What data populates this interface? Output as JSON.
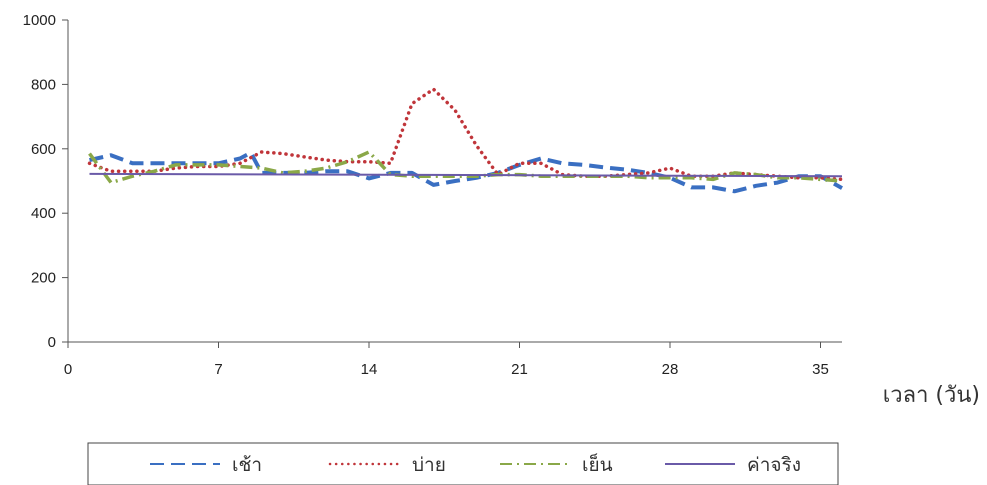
{
  "chart_data": {
    "type": "line",
    "title": "",
    "xlabel": "เวลา (วัน)",
    "ylabel": "",
    "xlim": [
      0,
      36
    ],
    "ylim": [
      0,
      1000
    ],
    "xticks": [
      0,
      7,
      14,
      21,
      28,
      35
    ],
    "yticks": [
      0,
      200,
      400,
      600,
      800,
      1000
    ],
    "grid": false,
    "legend_position": "bottom",
    "series": [
      {
        "name": "เช้า",
        "color": "#3a6fc2",
        "style": "dashed",
        "points": [
          [
            1,
            565
          ],
          [
            2,
            580
          ],
          [
            3,
            555
          ],
          [
            4,
            555
          ],
          [
            5,
            555
          ],
          [
            6,
            555
          ],
          [
            7,
            555
          ],
          [
            8,
            570
          ],
          [
            8.5,
            588
          ],
          [
            9,
            525
          ],
          [
            10,
            525
          ],
          [
            11,
            525
          ],
          [
            12,
            530
          ],
          [
            13,
            530
          ],
          [
            14,
            508
          ],
          [
            15,
            525
          ],
          [
            16,
            525
          ],
          [
            17,
            488
          ],
          [
            18,
            500
          ],
          [
            19,
            510
          ],
          [
            20,
            525
          ],
          [
            21,
            550
          ],
          [
            22,
            570
          ],
          [
            23,
            555
          ],
          [
            24,
            550
          ],
          [
            25,
            542
          ],
          [
            26,
            535
          ],
          [
            27,
            525
          ],
          [
            28,
            510
          ],
          [
            29,
            480
          ],
          [
            30,
            480
          ],
          [
            31,
            468
          ],
          [
            32,
            485
          ],
          [
            33,
            495
          ],
          [
            34,
            515
          ],
          [
            35,
            515
          ],
          [
            36,
            478
          ]
        ]
      },
      {
        "name": "บ่าย",
        "color": "#c0353a",
        "style": "dotted",
        "points": [
          [
            1,
            555
          ],
          [
            2,
            530
          ],
          [
            3,
            530
          ],
          [
            4,
            530
          ],
          [
            5,
            540
          ],
          [
            6,
            545
          ],
          [
            7,
            545
          ],
          [
            8,
            555
          ],
          [
            9,
            590
          ],
          [
            10,
            585
          ],
          [
            11,
            575
          ],
          [
            12,
            565
          ],
          [
            13,
            560
          ],
          [
            14,
            560
          ],
          [
            15,
            555
          ],
          [
            16,
            740
          ],
          [
            17,
            785
          ],
          [
            18,
            720
          ],
          [
            19,
            610
          ],
          [
            20,
            520
          ],
          [
            21,
            555
          ],
          [
            22,
            555
          ],
          [
            23,
            520
          ],
          [
            24,
            515
          ],
          [
            25,
            515
          ],
          [
            26,
            520
          ],
          [
            27,
            525
          ],
          [
            28,
            540
          ],
          [
            29,
            515
          ],
          [
            30,
            515
          ],
          [
            31,
            525
          ],
          [
            32,
            520
          ],
          [
            33,
            515
          ],
          [
            34,
            510
          ],
          [
            35,
            510
          ],
          [
            36,
            505
          ]
        ]
      },
      {
        "name": "เย็น",
        "color": "#8aa848",
        "style": "dashdot",
        "points": [
          [
            1,
            585
          ],
          [
            2,
            495
          ],
          [
            3,
            515
          ],
          [
            4,
            530
          ],
          [
            5,
            550
          ],
          [
            6,
            550
          ],
          [
            7,
            550
          ],
          [
            8,
            545
          ],
          [
            9,
            540
          ],
          [
            10,
            525
          ],
          [
            11,
            530
          ],
          [
            12,
            540
          ],
          [
            13,
            560
          ],
          [
            14,
            590
          ],
          [
            15,
            520
          ],
          [
            16,
            515
          ],
          [
            17,
            515
          ],
          [
            18,
            515
          ],
          [
            19,
            515
          ],
          [
            20,
            520
          ],
          [
            21,
            520
          ],
          [
            22,
            515
          ],
          [
            23,
            515
          ],
          [
            24,
            515
          ],
          [
            25,
            515
          ],
          [
            26,
            515
          ],
          [
            27,
            510
          ],
          [
            28,
            510
          ],
          [
            29,
            510
          ],
          [
            30,
            505
          ],
          [
            31,
            525
          ],
          [
            32,
            520
          ],
          [
            33,
            510
          ],
          [
            34,
            510
          ],
          [
            35,
            505
          ],
          [
            36,
            500
          ]
        ]
      },
      {
        "name": "ค่าจริง",
        "color": "#6a5aa8",
        "style": "solid",
        "points": [
          [
            1,
            522
          ],
          [
            36,
            515
          ]
        ]
      }
    ]
  }
}
